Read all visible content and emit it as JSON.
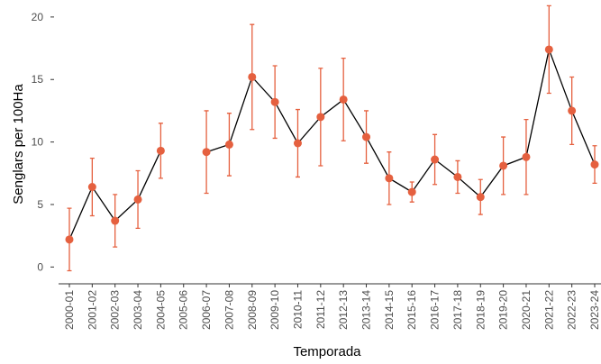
{
  "chart_data": {
    "type": "line",
    "x_label": "Temporada",
    "y_label": "Senglars per 100Ha",
    "categories": [
      "2000-01",
      "2001-02",
      "2002-03",
      "2003-04",
      "2004-05",
      "2005-06",
      "2006-07",
      "2007-08",
      "2008-09",
      "2009-10",
      "2010-11",
      "2011-12",
      "2012-13",
      "2013-14",
      "2014-15",
      "2015-16",
      "2016-17",
      "2017-18",
      "2018-19",
      "2019-20",
      "2020-21",
      "2021-22",
      "2022-23",
      "2023-24"
    ],
    "values": [
      2.2,
      6.4,
      3.7,
      5.4,
      9.3,
      null,
      9.2,
      9.8,
      15.2,
      13.2,
      9.9,
      12.0,
      13.4,
      10.4,
      7.1,
      6.0,
      8.6,
      7.2,
      5.6,
      8.1,
      8.8,
      17.4,
      12.5,
      8.2
    ],
    "errors": [
      2.5,
      2.3,
      2.1,
      2.3,
      2.2,
      null,
      3.3,
      2.5,
      4.2,
      2.9,
      2.7,
      3.9,
      3.3,
      2.1,
      2.1,
      0.8,
      2.0,
      1.3,
      1.4,
      2.3,
      3.0,
      3.5,
      2.7,
      1.5
    ],
    "line_color": "#000000",
    "marker_color": "#e5603f",
    "ylim": [
      -1.2,
      21
    ],
    "yticks": [
      0,
      5,
      10,
      15,
      20
    ],
    "grid": false
  }
}
